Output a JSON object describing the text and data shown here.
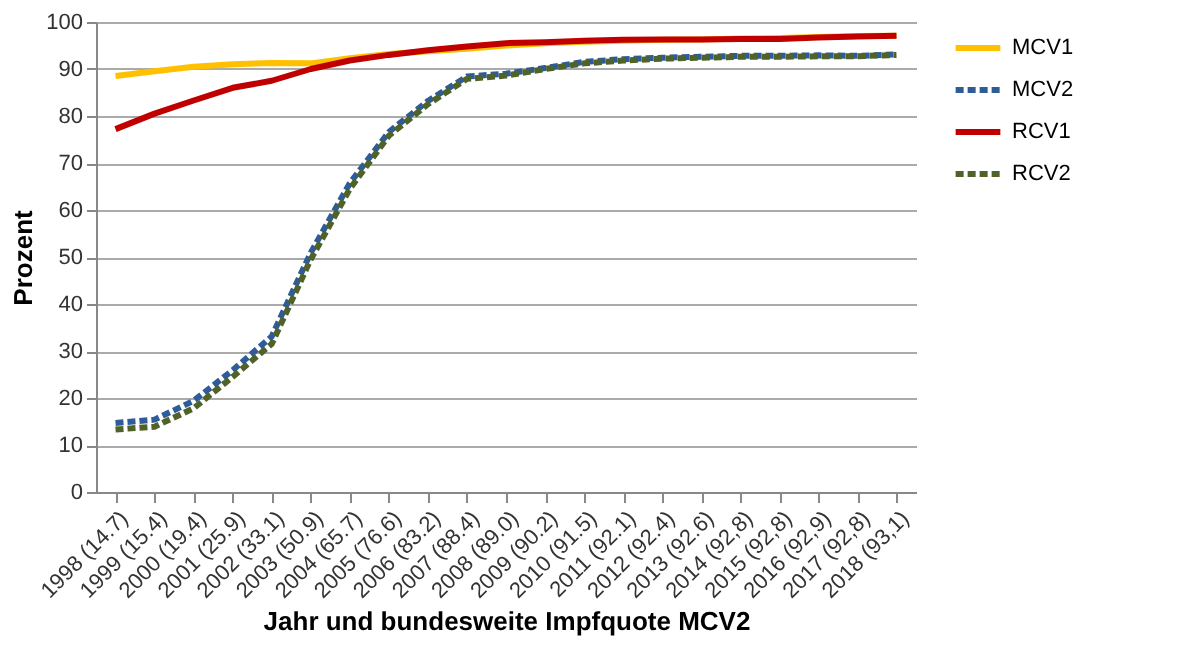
{
  "chart_data": {
    "type": "line",
    "xlabel": "Jahr und bundesweite Impfquote MCV2",
    "ylabel": "Prozent",
    "categories": [
      "1998 (14.7)",
      "1999 (15.4)",
      "2000 (19.4)",
      "2001 (25.9)",
      "2002 (33.1)",
      "2003 (50.9)",
      "2004 (65.7)",
      "2005 (76.6)",
      "2006 (83.2)",
      "2007 (88.4)",
      "2008 (89.0)",
      "2009 (90.2)",
      "2010 (91.5)",
      "2011 (92.1)",
      "2012 (92.4)",
      "2013 (92.6)",
      "2014 (92,8)",
      "2015 (92,8)",
      "2016 (92,9)",
      "2017 (92,8)",
      "2018 (93,1)"
    ],
    "series": [
      {
        "name": "MCV1",
        "color": "#ffc000",
        "line_style": "solid",
        "values": [
          88.5,
          89.5,
          90.5,
          91,
          91.3,
          91.2,
          92.3,
          93.2,
          93.8,
          94.3,
          95,
          95.5,
          95.8,
          96,
          96.2,
          96.3,
          96.5,
          96.6,
          96.8,
          97,
          97.1
        ]
      },
      {
        "name": "MCV2",
        "color": "#2e5c9a",
        "line_style": "dashed",
        "values": [
          14.7,
          15.4,
          19.4,
          25.9,
          33.1,
          50.9,
          65.7,
          76.6,
          83.2,
          88.4,
          89.0,
          90.2,
          91.5,
          92.1,
          92.4,
          92.6,
          92.8,
          92.8,
          92.9,
          92.8,
          93.1
        ]
      },
      {
        "name": "RCV1",
        "color": "#c00000",
        "line_style": "solid",
        "values": [
          77.2,
          80.5,
          83.3,
          86,
          87.5,
          90,
          91.8,
          93,
          94,
          94.8,
          95.5,
          95.7,
          96,
          96.2,
          96.3,
          96.3,
          96.4,
          96.4,
          96.7,
          96.9,
          97.1
        ]
      },
      {
        "name": "RCV2",
        "color": "#4f6228",
        "line_style": "dashed",
        "values": [
          13.3,
          13.9,
          17.8,
          24.5,
          31.5,
          49.5,
          64.5,
          75.8,
          82.5,
          87.9,
          88.6,
          90,
          91.2,
          91.8,
          92.2,
          92.4,
          92.6,
          92.6,
          92.7,
          92.7,
          93.0
        ]
      }
    ],
    "ylim": [
      0,
      100
    ],
    "yticks": [
      0,
      10,
      20,
      30,
      40,
      50,
      60,
      70,
      80,
      90,
      100
    ],
    "grid": "y",
    "legend": "right",
    "marker": "none"
  }
}
